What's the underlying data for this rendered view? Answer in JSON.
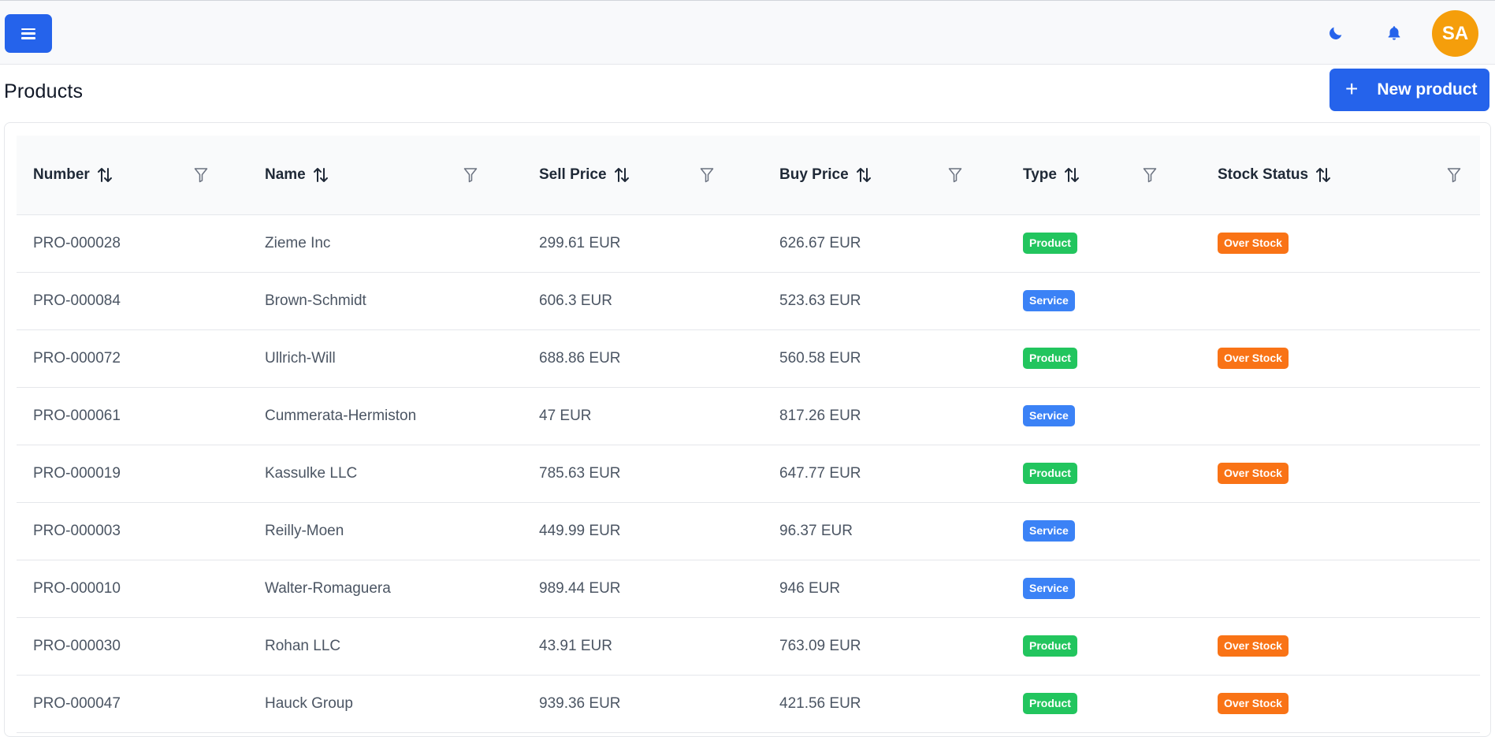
{
  "header": {
    "avatar_initials": "SA",
    "icons": [
      "menu-icon",
      "moon-icon",
      "bell-icon"
    ]
  },
  "page": {
    "title": "Products",
    "new_button_label": "New product"
  },
  "table": {
    "columns": [
      {
        "label": "Number"
      },
      {
        "label": "Name"
      },
      {
        "label": "Sell Price"
      },
      {
        "label": "Buy Price"
      },
      {
        "label": "Type"
      },
      {
        "label": "Stock Status"
      }
    ],
    "rows": [
      {
        "number": "PRO-000028",
        "name": "Zieme Inc",
        "sell_price": "299.61 EUR",
        "buy_price": "626.67 EUR",
        "type": "Product",
        "stock_status": "Over Stock"
      },
      {
        "number": "PRO-000084",
        "name": "Brown-Schmidt",
        "sell_price": "606.3 EUR",
        "buy_price": "523.63 EUR",
        "type": "Service",
        "stock_status": ""
      },
      {
        "number": "PRO-000072",
        "name": "Ullrich-Will",
        "sell_price": "688.86 EUR",
        "buy_price": "560.58 EUR",
        "type": "Product",
        "stock_status": "Over Stock"
      },
      {
        "number": "PRO-000061",
        "name": "Cummerata-Hermiston",
        "sell_price": "47 EUR",
        "buy_price": "817.26 EUR",
        "type": "Service",
        "stock_status": ""
      },
      {
        "number": "PRO-000019",
        "name": "Kassulke LLC",
        "sell_price": "785.63 EUR",
        "buy_price": "647.77 EUR",
        "type": "Product",
        "stock_status": "Over Stock"
      },
      {
        "number": "PRO-000003",
        "name": "Reilly-Moen",
        "sell_price": "449.99 EUR",
        "buy_price": "96.37 EUR",
        "type": "Service",
        "stock_status": ""
      },
      {
        "number": "PRO-000010",
        "name": "Walter-Romaguera",
        "sell_price": "989.44 EUR",
        "buy_price": "946 EUR",
        "type": "Service",
        "stock_status": ""
      },
      {
        "number": "PRO-000030",
        "name": "Rohan LLC",
        "sell_price": "43.91 EUR",
        "buy_price": "763.09 EUR",
        "type": "Product",
        "stock_status": "Over Stock"
      },
      {
        "number": "PRO-000047",
        "name": "Hauck Group",
        "sell_price": "939.36 EUR",
        "buy_price": "421.56 EUR",
        "type": "Product",
        "stock_status": "Over Stock"
      }
    ]
  },
  "colors": {
    "accent": "#2563eb",
    "avatar": "#f59e0b",
    "badge_product": "#22c55e",
    "badge_service": "#3b82f6",
    "badge_over_stock": "#f97316"
  }
}
